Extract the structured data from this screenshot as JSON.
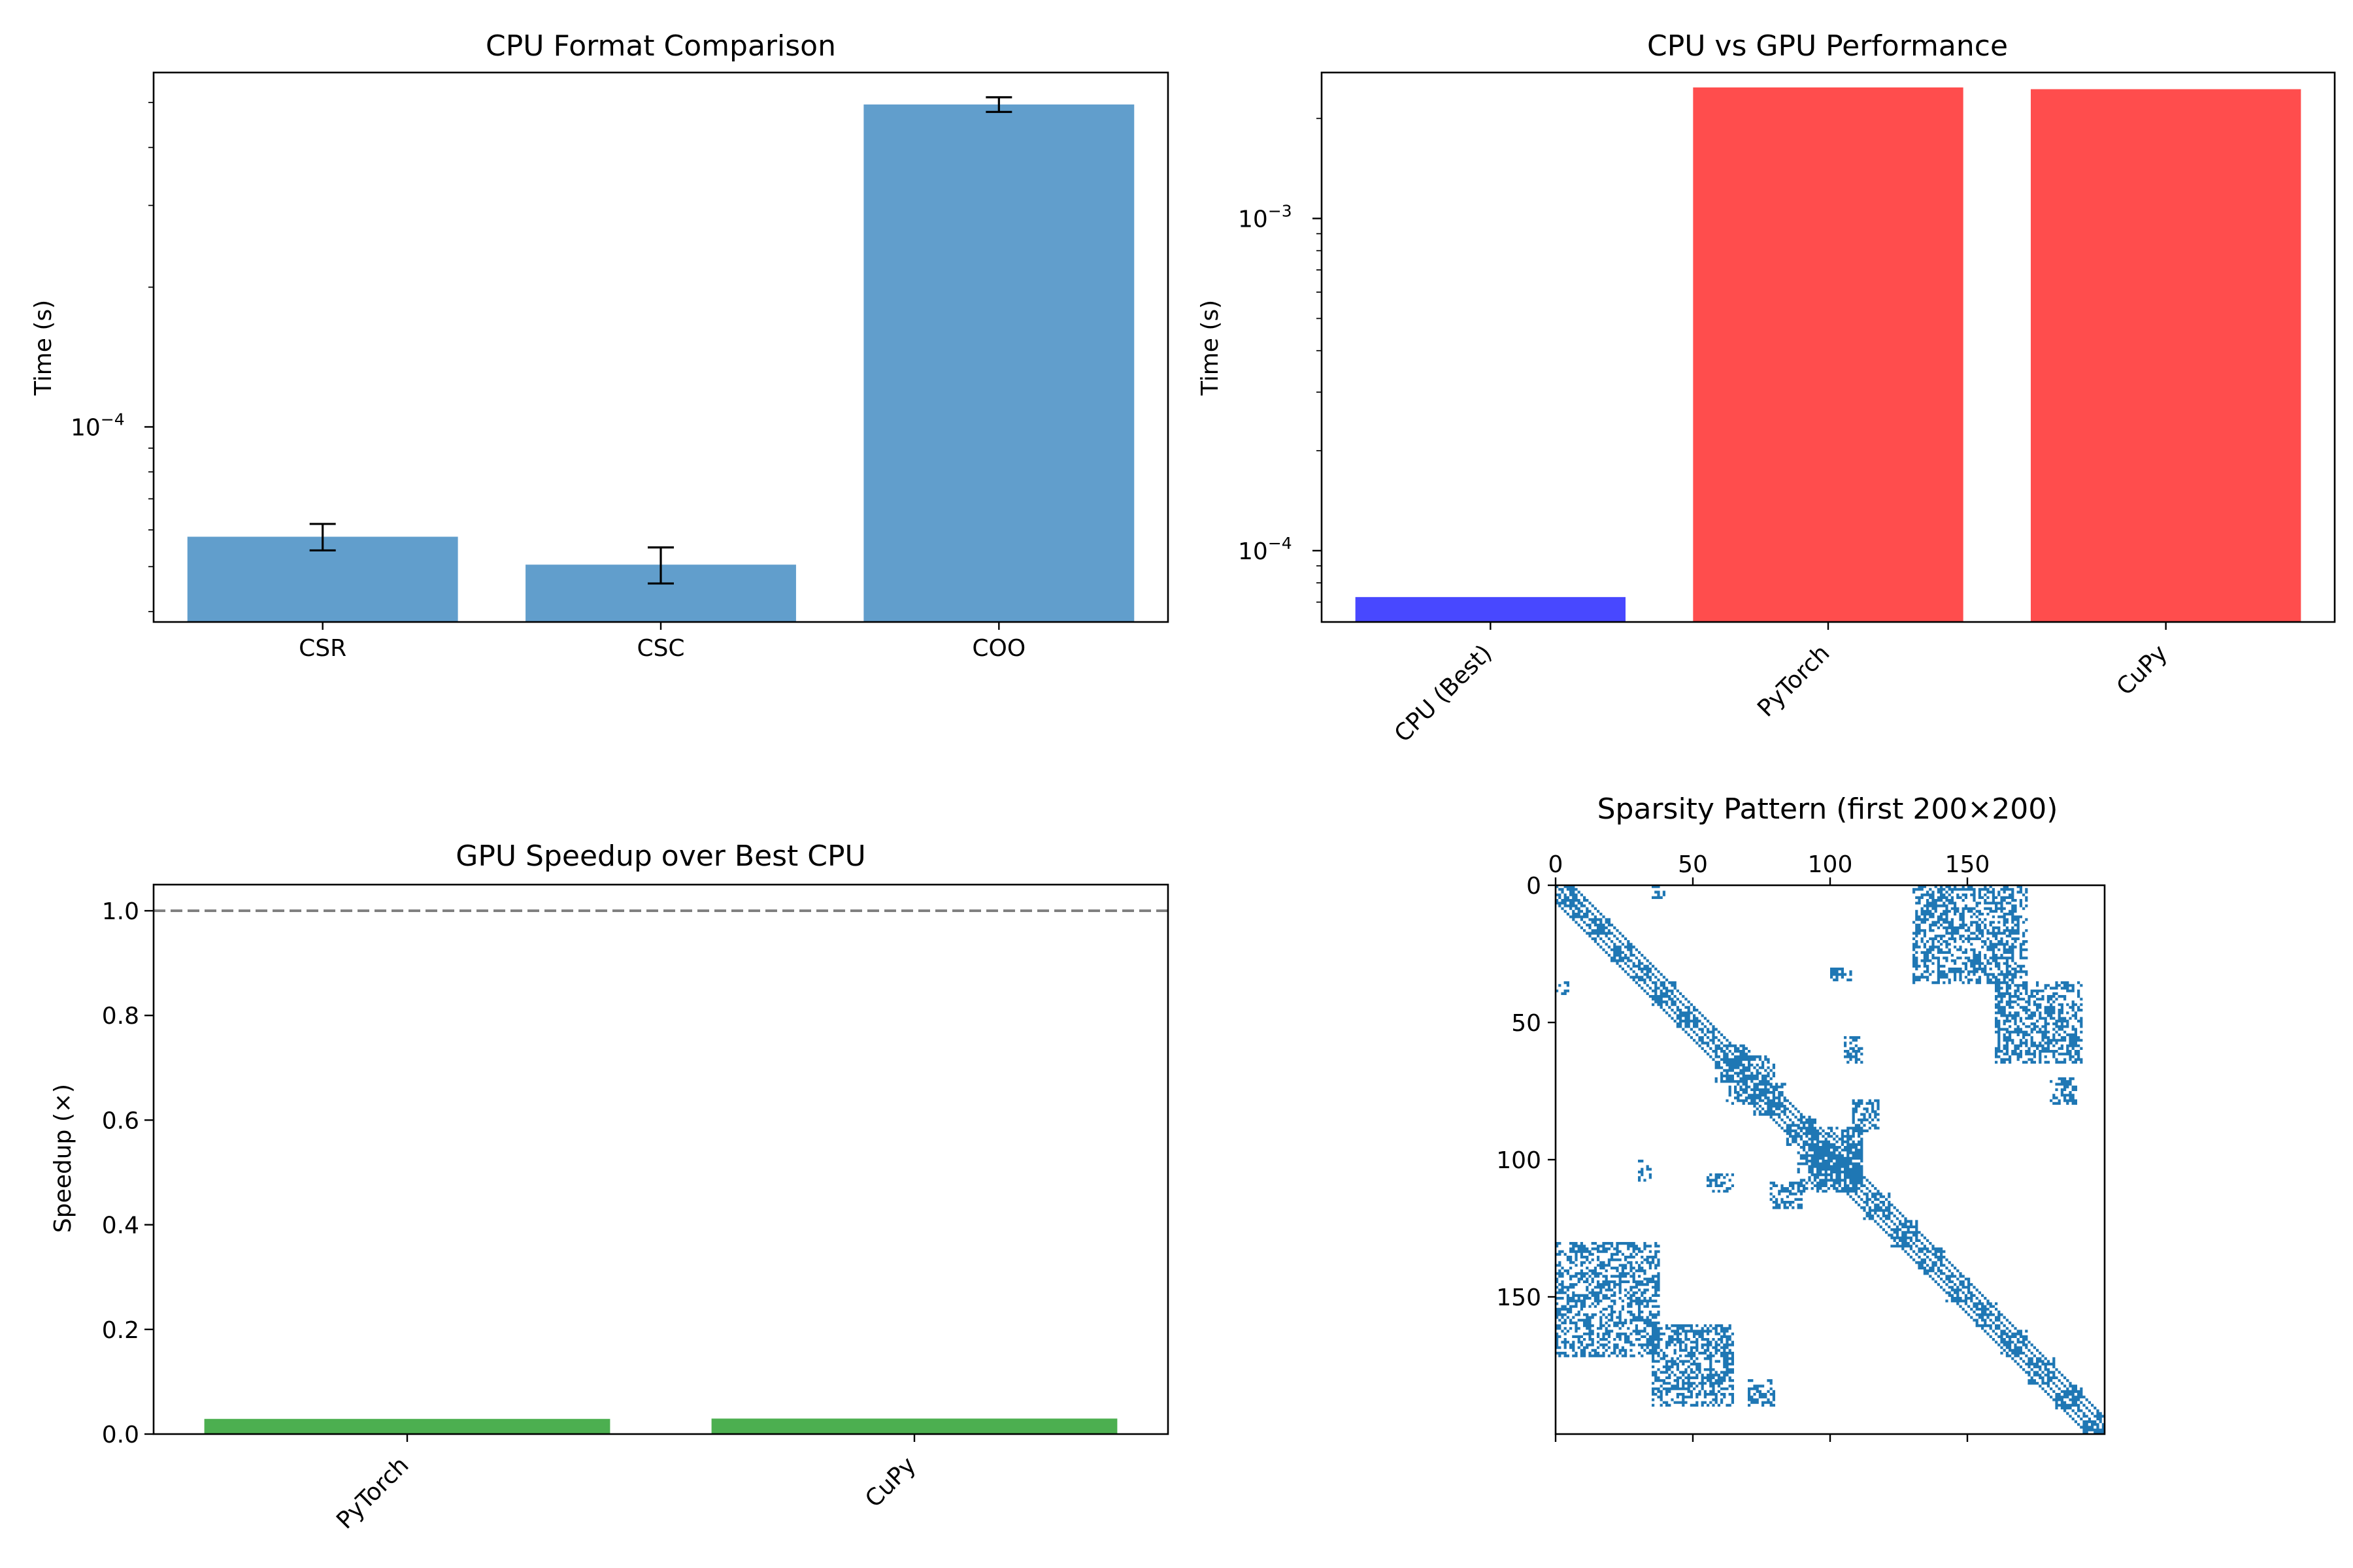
{
  "chart_data": [
    {
      "type": "bar",
      "title": "CPU Format Comparison",
      "ylabel": "Time (s)",
      "yscale": "log",
      "ylim": [
        3.8e-05,
        0.00058
      ],
      "yticks": [
        {
          "value": 0.0001,
          "base": "10",
          "exp": "−4"
        }
      ],
      "categories": [
        "CSR",
        "CSC",
        "COO"
      ],
      "values": [
        5.8e-05,
        5.05e-05,
        0.000495
      ],
      "errors": [
        3.8e-06,
        4.5e-06,
        1.8e-05
      ],
      "color": "#4a90c4"
    },
    {
      "type": "bar",
      "title": "CPU vs GPU Performance",
      "ylabel": "Time (s)",
      "yscale": "log",
      "ylim": [
        6.1e-05,
        0.00275
      ],
      "yticks": [
        {
          "value": 0.0001,
          "base": "10",
          "exp": "−4"
        },
        {
          "value": 0.001,
          "base": "10",
          "exp": "−3"
        }
      ],
      "categories": [
        "CPU (Best)",
        "PyTorch",
        "CuPy"
      ],
      "values": [
        7.25e-05,
        0.00248,
        0.00245
      ],
      "colors": [
        "#4848ff",
        "#ff4d4d",
        "#ff4d4d"
      ]
    },
    {
      "type": "bar",
      "title": "GPU Speedup over Best CPU",
      "ylabel": "Speedup (×)",
      "ylim": [
        0,
        1.05
      ],
      "yticks": [
        "0.0",
        "0.2",
        "0.4",
        "0.6",
        "0.8",
        "1.0"
      ],
      "categories": [
        "PyTorch",
        "CuPy"
      ],
      "values": [
        0.029,
        0.0296
      ],
      "reference_line": 1.0,
      "color": "#4caf50"
    },
    {
      "type": "heatmap",
      "title": "Sparsity Pattern (first 200×200)",
      "size": 200,
      "xticks": [
        "0",
        "50",
        "100",
        "150"
      ],
      "yticks": [
        "0",
        "50",
        "100",
        "150"
      ],
      "color": "#1f77b4",
      "blocks": [
        [
          0,
          0,
          8,
          8
        ],
        [
          5,
          5,
          12,
          12
        ],
        [
          12,
          12,
          20,
          20
        ],
        [
          20,
          20,
          28,
          28
        ],
        [
          28,
          28,
          35,
          35
        ],
        [
          35,
          35,
          44,
          44
        ],
        [
          44,
          44,
          52,
          52
        ],
        [
          52,
          52,
          58,
          58
        ],
        [
          58,
          58,
          72,
          72
        ],
        [
          62,
          62,
          80,
          80
        ],
        [
          72,
          72,
          84,
          84
        ],
        [
          84,
          84,
          95,
          95
        ],
        [
          95,
          95,
          104,
          104
        ],
        [
          104,
          104,
          112,
          112
        ],
        [
          112,
          112,
          122,
          122
        ],
        [
          122,
          122,
          132,
          132
        ],
        [
          132,
          132,
          142,
          142
        ],
        [
          142,
          142,
          152,
          152
        ],
        [
          152,
          152,
          162,
          162
        ],
        [
          162,
          162,
          172,
          172
        ],
        [
          172,
          172,
          182,
          182
        ],
        [
          182,
          182,
          192,
          192
        ],
        [
          192,
          192,
          200,
          200
        ],
        [
          130,
          0,
          172,
          38
        ],
        [
          0,
          130,
          36,
          172
        ],
        [
          93,
          88,
          112,
          112
        ],
        [
          88,
          93,
          112,
          112
        ],
        [
          160,
          35,
          190,
          65
        ],
        [
          35,
          160,
          65,
          192
        ],
        [
          105,
          55,
          112,
          65
        ],
        [
          55,
          105,
          65,
          112
        ],
        [
          78,
          108,
          90,
          118
        ],
        [
          108,
          78,
          118,
          90
        ],
        [
          30,
          100,
          35,
          108
        ],
        [
          100,
          30,
          108,
          35
        ],
        [
          180,
          70,
          190,
          80
        ],
        [
          70,
          180,
          80,
          190
        ],
        [
          0,
          35,
          5,
          40
        ],
        [
          35,
          0,
          40,
          5
        ]
      ]
    }
  ]
}
